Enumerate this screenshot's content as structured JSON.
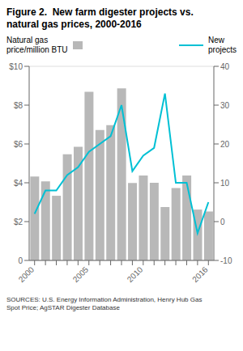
{
  "chart_data": {
    "type": "bar",
    "title": "Figure 2.  New farm digester projects vs.\nnatural gas prices, 2000-2016",
    "categories": [
      "2000",
      null,
      null,
      null,
      null,
      "2005",
      null,
      null,
      null,
      null,
      "2010",
      null,
      null,
      null,
      null,
      null,
      "2016"
    ],
    "series": [
      {
        "name": "Natural gas\nprice/million BTU",
        "type": "bar",
        "color": "#b8b8b8",
        "values": [
          4.32,
          4.07,
          3.33,
          5.47,
          5.85,
          8.69,
          6.72,
          6.97,
          8.86,
          3.99,
          4.37,
          4.0,
          2.75,
          3.73,
          4.37,
          2.62,
          2.52
        ]
      },
      {
        "name": "New\nprojects",
        "type": "line",
        "axis": "y2",
        "color": "#00c0d4",
        "values": [
          2,
          8,
          8,
          12,
          14,
          18,
          20,
          22,
          30,
          13,
          17,
          19,
          33,
          10,
          10,
          -3,
          5
        ]
      }
    ],
    "ylim": [
      0,
      10
    ],
    "yticks": [
      0,
      {
        "value": 2,
        "label": "$2"
      },
      {
        "value": 4,
        "label": "$4"
      },
      {
        "value": 6,
        "label": "$6"
      },
      {
        "value": 8,
        "label": "$8"
      },
      {
        "value": 10,
        "label": "$10"
      }
    ],
    "y2lim": [
      -10,
      40
    ],
    "y2ticks": [
      -10,
      0,
      10,
      20,
      30,
      40
    ],
    "grid": true,
    "legend": "top",
    "annotations": [
      "SOURCES: U.S. Energy Information Administration, Henry Hub Gas\nSpot Price; AgSTAR Digester Database"
    ]
  }
}
